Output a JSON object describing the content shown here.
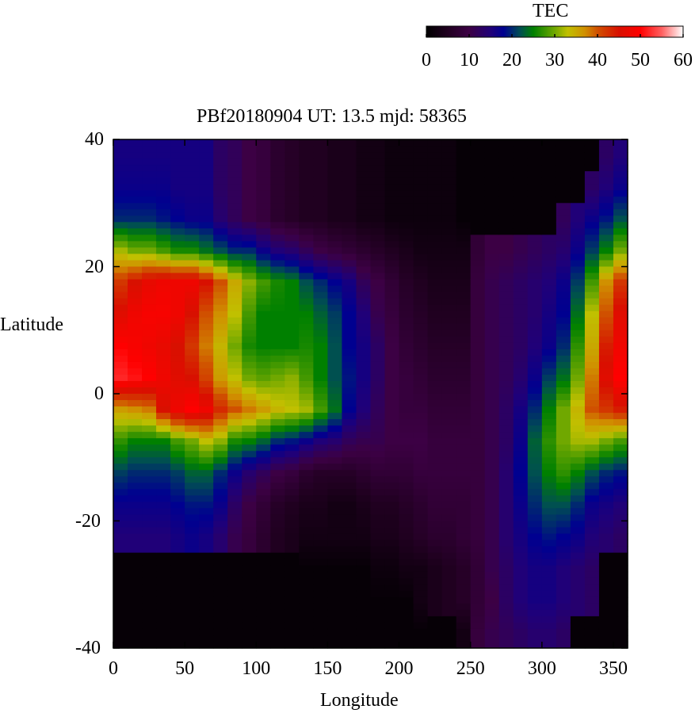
{
  "chart_data": {
    "type": "heatmap",
    "title": "PBf20180904  UT: 13.5  mjd: 58365",
    "xlabel": "Longitude",
    "ylabel": "Latitude",
    "xlim": [
      0,
      360
    ],
    "ylim": [
      -40,
      40
    ],
    "x_ticks": [
      "0",
      "50",
      "100",
      "150",
      "200",
      "250",
      "300",
      "350"
    ],
    "y_ticks": [
      "40",
      "20",
      "0",
      "-20",
      "-40"
    ],
    "colorbar": {
      "label": "TEC",
      "range": [
        0,
        60
      ],
      "ticks": [
        "0",
        "10",
        "20",
        "30",
        "40",
        "50",
        "60"
      ],
      "colors": [
        {
          "v": 0,
          "c": "#000000"
        },
        {
          "v": 5,
          "c": "#200020"
        },
        {
          "v": 10,
          "c": "#3c0044"
        },
        {
          "v": 15,
          "c": "#200078"
        },
        {
          "v": 18,
          "c": "#000090"
        },
        {
          "v": 22,
          "c": "#005050"
        },
        {
          "v": 25,
          "c": "#008000"
        },
        {
          "v": 30,
          "c": "#70a800"
        },
        {
          "v": 33,
          "c": "#c0c000"
        },
        {
          "v": 37,
          "c": "#d09000"
        },
        {
          "v": 40,
          "c": "#d05000"
        },
        {
          "v": 45,
          "c": "#d81000"
        },
        {
          "v": 50,
          "c": "#ff0000"
        },
        {
          "v": 55,
          "c": "#ff6060"
        },
        {
          "v": 60,
          "c": "#ffffff"
        }
      ]
    },
    "lon_centers": [
      5,
      15,
      25,
      35,
      45,
      55,
      65,
      75,
      85,
      95,
      105,
      115,
      125,
      135,
      145,
      155,
      165,
      175,
      185,
      195,
      205,
      215,
      225,
      235,
      245,
      255,
      265,
      275,
      285,
      295,
      305,
      315,
      325,
      335,
      345,
      355
    ],
    "lat_centers": [
      37.5,
      32.5,
      27.5,
      22.5,
      17.5,
      12.5,
      7.5,
      2.5,
      -2.5,
      -7.5,
      -12.5,
      -17.5,
      -22.5,
      -27.5,
      -32.5,
      -37.5
    ],
    "values": [
      [
        16,
        16,
        16,
        16,
        16,
        16,
        16,
        13,
        12,
        10,
        9,
        7,
        6,
        5,
        5,
        4,
        4,
        3,
        3,
        2,
        2,
        2,
        2,
        2,
        1,
        1,
        1,
        1,
        1,
        1,
        1,
        1,
        1,
        1,
        13,
        15
      ],
      [
        17,
        17,
        17,
        17,
        16,
        16,
        16,
        13,
        12,
        10,
        9,
        7,
        6,
        5,
        5,
        4,
        4,
        3,
        3,
        2,
        2,
        2,
        2,
        2,
        1,
        1,
        1,
        1,
        1,
        1,
        1,
        1,
        1,
        13,
        15,
        17
      ],
      [
        20,
        20,
        20,
        19,
        18,
        17,
        17,
        14,
        12,
        10,
        9,
        7,
        6,
        5,
        5,
        4,
        4,
        3,
        3,
        2,
        2,
        2,
        2,
        2,
        1,
        1,
        1,
        1,
        1,
        1,
        1,
        12,
        15,
        17,
        19,
        22
      ],
      [
        32,
        30,
        30,
        28,
        26,
        26,
        24,
        22,
        20,
        20,
        17,
        15,
        14,
        12,
        10,
        9,
        8,
        7,
        6,
        5,
        4,
        3,
        3,
        3,
        3,
        8,
        10,
        10,
        11,
        12,
        13,
        14,
        17,
        21,
        25,
        30
      ],
      [
        42,
        45,
        47,
        48,
        48,
        48,
        45,
        40,
        35,
        31,
        28,
        26,
        25,
        22,
        20,
        18,
        16,
        12,
        10,
        8,
        6,
        5,
        4,
        4,
        4,
        9,
        11,
        12,
        13,
        14,
        15,
        17,
        21,
        28,
        37,
        42
      ],
      [
        46,
        48,
        49,
        49,
        48,
        45,
        40,
        37,
        33,
        28,
        25,
        25,
        25,
        25,
        23,
        21,
        18,
        15,
        11,
        9,
        7,
        6,
        5,
        5,
        5,
        9,
        11,
        12,
        13,
        14,
        16,
        18,
        24,
        33,
        40,
        46
      ],
      [
        50,
        49,
        48,
        47,
        45,
        42,
        38,
        34,
        30,
        26,
        25,
        25,
        25,
        26,
        25,
        22,
        18,
        16,
        13,
        10,
        8,
        7,
        6,
        6,
        6,
        9,
        11,
        12,
        13,
        15,
        17,
        20,
        27,
        35,
        44,
        48
      ],
      [
        52,
        51,
        50,
        48,
        46,
        45,
        41,
        36,
        33,
        30,
        29,
        30,
        31,
        28,
        25,
        22,
        19,
        16,
        13,
        10,
        9,
        8,
        7,
        7,
        7,
        9,
        11,
        12,
        14,
        17,
        21,
        24,
        30,
        38,
        46,
        50
      ],
      [
        36,
        37,
        38,
        45,
        48,
        50,
        48,
        43,
        40,
        38,
        36,
        34,
        33,
        32,
        28,
        24,
        18,
        15,
        12,
        10,
        9,
        9,
        8,
        8,
        8,
        9,
        11,
        13,
        16,
        20,
        25,
        30,
        34,
        40,
        42,
        44
      ],
      [
        27,
        25,
        25,
        25,
        28,
        30,
        33,
        31,
        26,
        25,
        23,
        20,
        19,
        17,
        15,
        14,
        12,
        11,
        11,
        10,
        10,
        10,
        9,
        9,
        9,
        9,
        11,
        13,
        17,
        23,
        27,
        30,
        32,
        32,
        30,
        28
      ],
      [
        21,
        20,
        20,
        20,
        21,
        23,
        23,
        20,
        17,
        14,
        12,
        10,
        9,
        7,
        6,
        6,
        6,
        7,
        8,
        8,
        8,
        9,
        9,
        9,
        9,
        9,
        11,
        14,
        18,
        22,
        25,
        27,
        25,
        22,
        20,
        19
      ],
      [
        17,
        17,
        17,
        17,
        18,
        19,
        19,
        17,
        13,
        10,
        8,
        6,
        5,
        4,
        4,
        3,
        3,
        4,
        5,
        5,
        6,
        7,
        8,
        8,
        8,
        9,
        11,
        14,
        17,
        20,
        22,
        22,
        20,
        17,
        16,
        15
      ],
      [
        15,
        15,
        15,
        15,
        16,
        17,
        16,
        14,
        11,
        9,
        7,
        5,
        4,
        3,
        3,
        3,
        3,
        3,
        4,
        4,
        5,
        6,
        7,
        7,
        8,
        9,
        11,
        14,
        16,
        18,
        19,
        18,
        17,
        15,
        14,
        13
      ],
      [
        1,
        1,
        1,
        1,
        1,
        1,
        1,
        1,
        1,
        1,
        1,
        1,
        1,
        1,
        1,
        1,
        1,
        1,
        2,
        2,
        3,
        3,
        4,
        5,
        6,
        8,
        11,
        13,
        15,
        16,
        16,
        15,
        14,
        13,
        1,
        1
      ],
      [
        1,
        1,
        1,
        1,
        1,
        1,
        1,
        1,
        1,
        1,
        1,
        1,
        1,
        1,
        1,
        1,
        1,
        1,
        1,
        1,
        1,
        3,
        4,
        5,
        6,
        8,
        10,
        13,
        15,
        16,
        16,
        15,
        14,
        13,
        1,
        1
      ],
      [
        1,
        1,
        1,
        1,
        1,
        1,
        1,
        1,
        1,
        1,
        1,
        1,
        1,
        1,
        1,
        1,
        1,
        1,
        1,
        1,
        1,
        1,
        1,
        1,
        3,
        9,
        11,
        12,
        13,
        14,
        14,
        13,
        1,
        1,
        1,
        1
      ]
    ]
  }
}
